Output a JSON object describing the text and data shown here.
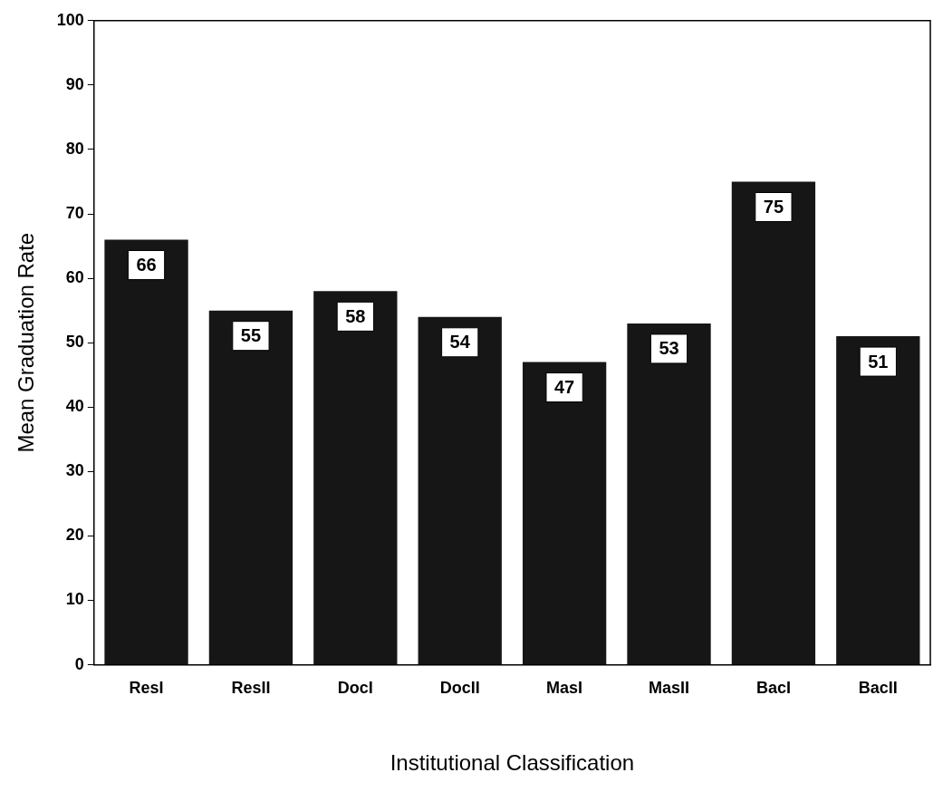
{
  "chart_data": {
    "type": "bar",
    "xlabel": "Institutional Classification",
    "ylabel": "Mean Graduation Rate",
    "categories": [
      "ResI",
      "ResII",
      "DocI",
      "DocII",
      "MasI",
      "MasII",
      "BacI",
      "BacII"
    ],
    "values": [
      66,
      55,
      58,
      54,
      47,
      53,
      75,
      51
    ],
    "color": "#161616",
    "ylim": [
      0,
      100
    ],
    "yticks": [
      0,
      10,
      20,
      30,
      40,
      50,
      60,
      70,
      80,
      90,
      100
    ],
    "grid": false,
    "data_labels": true
  }
}
